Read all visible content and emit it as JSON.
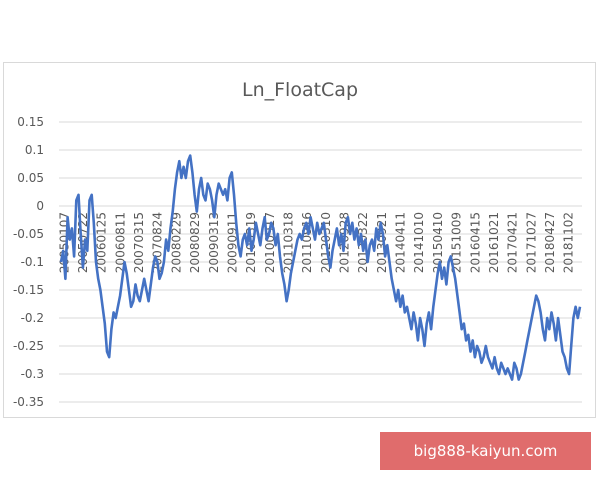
{
  "chart_data": {
    "type": "line",
    "title": "Ln_FloatCap",
    "xlabel": "",
    "ylabel": "",
    "ylim": [
      -0.35,
      0.15
    ],
    "y_ticks": [
      "0.15",
      "0.1",
      "0.05",
      "0",
      "-0.05",
      "-0.1",
      "-0.15",
      "-0.2",
      "-0.25",
      "-0.3",
      "-0.35"
    ],
    "x_ticks": [
      "20050107",
      "20050722",
      "20060125",
      "20060811",
      "20070315",
      "20070824",
      "20080229",
      "20080829",
      "20090313",
      "20090911",
      "20100319",
      "20100917",
      "20110318",
      "20110916",
      "20120310",
      "20120928",
      "20130322",
      "20130921",
      "20140411",
      "20141010",
      "20150410",
      "20151009",
      "20160415",
      "20161021",
      "20170421",
      "20171027",
      "20180427",
      "20181102"
    ],
    "grid": true,
    "legend": "none",
    "series_color": "#4472c4",
    "series": [
      {
        "values": [
          -0.1,
          -0.08,
          -0.13,
          -0.02,
          -0.06,
          -0.04,
          -0.09,
          0.01,
          0.02,
          -0.05,
          -0.11,
          -0.06,
          -0.08,
          0.01,
          0.02,
          -0.03,
          -0.1,
          -0.13,
          -0.15,
          -0.18,
          -0.21,
          -0.26,
          -0.27,
          -0.22,
          -0.19,
          -0.2,
          -0.18,
          -0.16,
          -0.13,
          -0.1,
          -0.12,
          -0.15,
          -0.18,
          -0.17,
          -0.14,
          -0.16,
          -0.17,
          -0.15,
          -0.13,
          -0.15,
          -0.17,
          -0.14,
          -0.11,
          -0.09,
          -0.1,
          -0.13,
          -0.12,
          -0.1,
          -0.06,
          -0.08,
          -0.04,
          -0.01,
          0.03,
          0.06,
          0.08,
          0.05,
          0.07,
          0.05,
          0.08,
          0.09,
          0.06,
          0.02,
          -0.01,
          0.03,
          0.05,
          0.02,
          0.01,
          0.04,
          0.03,
          0.01,
          -0.02,
          0.02,
          0.04,
          0.03,
          0.02,
          0.03,
          0.01,
          0.05,
          0.06,
          0.02,
          -0.03,
          -0.07,
          -0.09,
          -0.06,
          -0.05,
          -0.07,
          -0.04,
          -0.08,
          -0.06,
          -0.03,
          -0.05,
          -0.07,
          -0.04,
          -0.02,
          -0.06,
          -0.05,
          -0.03,
          -0.04,
          -0.07,
          -0.05,
          -0.09,
          -0.12,
          -0.14,
          -0.17,
          -0.15,
          -0.12,
          -0.1,
          -0.08,
          -0.06,
          -0.05,
          -0.06,
          -0.04,
          -0.03,
          -0.05,
          -0.02,
          -0.04,
          -0.06,
          -0.03,
          -0.05,
          -0.04,
          -0.03,
          -0.06,
          -0.09,
          -0.11,
          -0.08,
          -0.06,
          -0.04,
          -0.07,
          -0.05,
          -0.08,
          -0.03,
          -0.02,
          -0.05,
          -0.03,
          -0.06,
          -0.04,
          -0.07,
          -0.05,
          -0.08,
          -0.06,
          -0.1,
          -0.07,
          -0.06,
          -0.08,
          -0.04,
          -0.06,
          -0.03,
          -0.05,
          -0.09,
          -0.07,
          -0.1,
          -0.13,
          -0.15,
          -0.17,
          -0.15,
          -0.18,
          -0.16,
          -0.19,
          -0.18,
          -0.2,
          -0.22,
          -0.19,
          -0.21,
          -0.24,
          -0.2,
          -0.22,
          -0.25,
          -0.21,
          -0.19,
          -0.22,
          -0.18,
          -0.15,
          -0.12,
          -0.1,
          -0.13,
          -0.11,
          -0.14,
          -0.1,
          -0.09,
          -0.11,
          -0.13,
          -0.16,
          -0.19,
          -0.22,
          -0.21,
          -0.24,
          -0.23,
          -0.26,
          -0.24,
          -0.27,
          -0.25,
          -0.26,
          -0.28,
          -0.27,
          -0.25,
          -0.27,
          -0.28,
          -0.29,
          -0.27,
          -0.29,
          -0.3,
          -0.28,
          -0.29,
          -0.3,
          -0.29,
          -0.3,
          -0.31,
          -0.28,
          -0.29,
          -0.31,
          -0.3,
          -0.28,
          -0.26,
          -0.24,
          -0.22,
          -0.2,
          -0.18,
          -0.16,
          -0.17,
          -0.19,
          -0.22,
          -0.24,
          -0.2,
          -0.22,
          -0.19,
          -0.21,
          -0.24,
          -0.2,
          -0.23,
          -0.26,
          -0.27,
          -0.29,
          -0.3,
          -0.25,
          -0.2,
          -0.18,
          -0.2,
          -0.18
        ]
      }
    ]
  },
  "watermark": {
    "text": "big888-kaiyun.com",
    "color": "#e06c6c"
  }
}
